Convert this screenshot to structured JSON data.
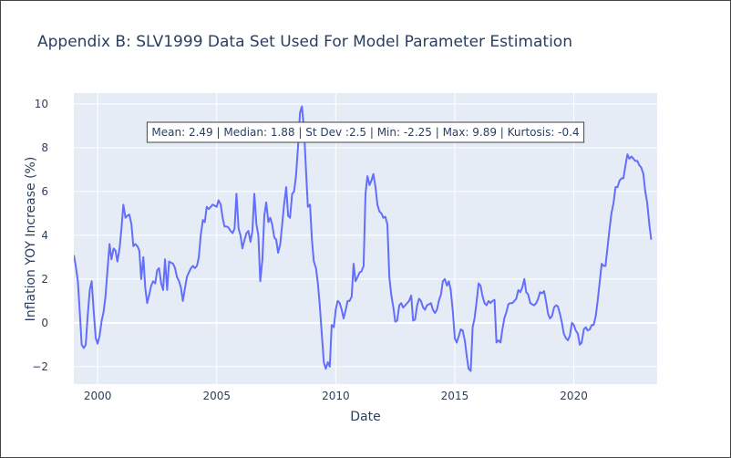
{
  "chart_data": {
    "type": "line",
    "title": "Appendix B: SLV1999 Data Set Used For Model Parameter Estimation",
    "xlabel": "Date",
    "ylabel": "Inflation YOY Increase (%)",
    "xlim": [
      1999.0,
      2023.5
    ],
    "ylim": [
      -2.8,
      10.5
    ],
    "x_ticks": [
      2000,
      2005,
      2010,
      2015,
      2020
    ],
    "y_ticks": [
      -2,
      0,
      2,
      4,
      6,
      8,
      10
    ],
    "grid": true,
    "line_color": "#636efa",
    "plot_bgcolor": "#e5ecf6",
    "annotation": "Mean: 2.49 | Median: 1.88 | St Dev :2.5 | Min: -2.25 | Max: 9.89 | Kurtosis: -0.4",
    "series": [
      {
        "values": [
          [
            1999.0,
            3.1
          ],
          [
            1999.08,
            2.6
          ],
          [
            1999.17,
            1.9
          ],
          [
            1999.25,
            0.5
          ],
          [
            1999.33,
            -1.0
          ],
          [
            1999.42,
            -1.15
          ],
          [
            1999.5,
            -1.0
          ],
          [
            1999.58,
            0.3
          ],
          [
            1999.67,
            1.5
          ],
          [
            1999.75,
            1.9
          ],
          [
            1999.83,
            0.6
          ],
          [
            1999.92,
            -0.7
          ],
          [
            2000.0,
            -0.95
          ],
          [
            2000.08,
            -0.6
          ],
          [
            2000.17,
            0.1
          ],
          [
            2000.25,
            0.5
          ],
          [
            2000.33,
            1.2
          ],
          [
            2000.42,
            2.5
          ],
          [
            2000.5,
            3.6
          ],
          [
            2000.58,
            2.9
          ],
          [
            2000.67,
            3.4
          ],
          [
            2000.75,
            3.3
          ],
          [
            2000.83,
            2.8
          ],
          [
            2000.92,
            3.4
          ],
          [
            2001.0,
            4.3
          ],
          [
            2001.08,
            5.4
          ],
          [
            2001.17,
            4.8
          ],
          [
            2001.25,
            4.9
          ],
          [
            2001.33,
            4.95
          ],
          [
            2001.42,
            4.5
          ],
          [
            2001.5,
            3.5
          ],
          [
            2001.58,
            3.6
          ],
          [
            2001.67,
            3.5
          ],
          [
            2001.75,
            3.3
          ],
          [
            2001.83,
            2.0
          ],
          [
            2001.92,
            3.0
          ],
          [
            2002.0,
            1.6
          ],
          [
            2002.08,
            0.9
          ],
          [
            2002.17,
            1.3
          ],
          [
            2002.25,
            1.7
          ],
          [
            2002.33,
            1.9
          ],
          [
            2002.42,
            1.8
          ],
          [
            2002.5,
            2.4
          ],
          [
            2002.58,
            2.5
          ],
          [
            2002.67,
            1.8
          ],
          [
            2002.75,
            1.5
          ],
          [
            2002.83,
            2.9
          ],
          [
            2002.92,
            1.5
          ],
          [
            2003.0,
            2.8
          ],
          [
            2003.08,
            2.75
          ],
          [
            2003.17,
            2.7
          ],
          [
            2003.25,
            2.5
          ],
          [
            2003.33,
            2.1
          ],
          [
            2003.42,
            1.9
          ],
          [
            2003.5,
            1.6
          ],
          [
            2003.58,
            1.0
          ],
          [
            2003.67,
            1.6
          ],
          [
            2003.75,
            2.1
          ],
          [
            2003.83,
            2.3
          ],
          [
            2003.92,
            2.5
          ],
          [
            2004.0,
            2.6
          ],
          [
            2004.08,
            2.5
          ],
          [
            2004.17,
            2.6
          ],
          [
            2004.25,
            3.0
          ],
          [
            2004.33,
            4.0
          ],
          [
            2004.42,
            4.7
          ],
          [
            2004.5,
            4.6
          ],
          [
            2004.58,
            5.3
          ],
          [
            2004.67,
            5.2
          ],
          [
            2004.75,
            5.3
          ],
          [
            2004.83,
            5.4
          ],
          [
            2004.92,
            5.35
          ],
          [
            2005.0,
            5.3
          ],
          [
            2005.08,
            5.6
          ],
          [
            2005.17,
            5.4
          ],
          [
            2005.25,
            4.8
          ],
          [
            2005.33,
            4.4
          ],
          [
            2005.42,
            4.4
          ],
          [
            2005.5,
            4.35
          ],
          [
            2005.58,
            4.2
          ],
          [
            2005.67,
            4.1
          ],
          [
            2005.75,
            4.3
          ],
          [
            2005.83,
            5.9
          ],
          [
            2005.92,
            4.3
          ],
          [
            2006.0,
            4.0
          ],
          [
            2006.08,
            3.4
          ],
          [
            2006.17,
            3.8
          ],
          [
            2006.25,
            4.1
          ],
          [
            2006.33,
            4.2
          ],
          [
            2006.42,
            3.7
          ],
          [
            2006.5,
            4.2
          ],
          [
            2006.58,
            5.9
          ],
          [
            2006.67,
            4.5
          ],
          [
            2006.75,
            4.0
          ],
          [
            2006.83,
            1.9
          ],
          [
            2006.92,
            2.9
          ],
          [
            2007.0,
            4.9
          ],
          [
            2007.08,
            5.5
          ],
          [
            2007.17,
            4.6
          ],
          [
            2007.25,
            4.8
          ],
          [
            2007.33,
            4.5
          ],
          [
            2007.42,
            3.9
          ],
          [
            2007.5,
            3.8
          ],
          [
            2007.58,
            3.2
          ],
          [
            2007.67,
            3.6
          ],
          [
            2007.75,
            4.5
          ],
          [
            2007.83,
            5.4
          ],
          [
            2007.92,
            6.2
          ],
          [
            2008.0,
            4.9
          ],
          [
            2008.08,
            4.8
          ],
          [
            2008.17,
            5.9
          ],
          [
            2008.25,
            6.0
          ],
          [
            2008.33,
            6.7
          ],
          [
            2008.42,
            8.1
          ],
          [
            2008.5,
            9.6
          ],
          [
            2008.58,
            9.89
          ],
          [
            2008.67,
            8.8
          ],
          [
            2008.75,
            7.0
          ],
          [
            2008.83,
            5.3
          ],
          [
            2008.92,
            5.4
          ],
          [
            2009.0,
            3.8
          ],
          [
            2009.08,
            2.8
          ],
          [
            2009.17,
            2.5
          ],
          [
            2009.25,
            1.8
          ],
          [
            2009.33,
            0.8
          ],
          [
            2009.42,
            -0.6
          ],
          [
            2009.5,
            -1.8
          ],
          [
            2009.58,
            -2.1
          ],
          [
            2009.67,
            -1.8
          ],
          [
            2009.75,
            -2.0
          ],
          [
            2009.83,
            -0.1
          ],
          [
            2009.92,
            -0.2
          ],
          [
            2010.0,
            0.6
          ],
          [
            2010.08,
            1.0
          ],
          [
            2010.17,
            0.9
          ],
          [
            2010.25,
            0.6
          ],
          [
            2010.33,
            0.2
          ],
          [
            2010.42,
            0.6
          ],
          [
            2010.5,
            1.0
          ],
          [
            2010.58,
            1.0
          ],
          [
            2010.67,
            1.2
          ],
          [
            2010.75,
            2.7
          ],
          [
            2010.83,
            1.9
          ],
          [
            2010.92,
            2.1
          ],
          [
            2011.0,
            2.3
          ],
          [
            2011.08,
            2.35
          ],
          [
            2011.17,
            2.6
          ],
          [
            2011.25,
            5.9
          ],
          [
            2011.33,
            6.7
          ],
          [
            2011.42,
            6.3
          ],
          [
            2011.5,
            6.5
          ],
          [
            2011.58,
            6.8
          ],
          [
            2011.67,
            6.2
          ],
          [
            2011.75,
            5.4
          ],
          [
            2011.83,
            5.1
          ],
          [
            2011.92,
            5.0
          ],
          [
            2012.0,
            4.8
          ],
          [
            2012.08,
            4.85
          ],
          [
            2012.17,
            4.5
          ],
          [
            2012.25,
            2.1
          ],
          [
            2012.33,
            1.3
          ],
          [
            2012.42,
            0.7
          ],
          [
            2012.5,
            0.05
          ],
          [
            2012.58,
            0.1
          ],
          [
            2012.67,
            0.8
          ],
          [
            2012.75,
            0.9
          ],
          [
            2012.83,
            0.7
          ],
          [
            2012.92,
            0.8
          ],
          [
            2013.0,
            0.9
          ],
          [
            2013.08,
            1.0
          ],
          [
            2013.17,
            1.25
          ],
          [
            2013.25,
            0.1
          ],
          [
            2013.33,
            0.15
          ],
          [
            2013.42,
            0.8
          ],
          [
            2013.5,
            1.1
          ],
          [
            2013.58,
            1.0
          ],
          [
            2013.67,
            0.7
          ],
          [
            2013.75,
            0.6
          ],
          [
            2013.83,
            0.8
          ],
          [
            2013.92,
            0.85
          ],
          [
            2014.0,
            0.9
          ],
          [
            2014.08,
            0.6
          ],
          [
            2014.17,
            0.45
          ],
          [
            2014.25,
            0.6
          ],
          [
            2014.33,
            1.0
          ],
          [
            2014.42,
            1.3
          ],
          [
            2014.5,
            1.9
          ],
          [
            2014.58,
            2.0
          ],
          [
            2014.67,
            1.7
          ],
          [
            2014.75,
            1.9
          ],
          [
            2014.83,
            1.5
          ],
          [
            2014.92,
            0.5
          ],
          [
            2015.0,
            -0.7
          ],
          [
            2015.08,
            -0.9
          ],
          [
            2015.17,
            -0.6
          ],
          [
            2015.25,
            -0.3
          ],
          [
            2015.33,
            -0.35
          ],
          [
            2015.42,
            -0.8
          ],
          [
            2015.5,
            -1.5
          ],
          [
            2015.58,
            -2.1
          ],
          [
            2015.67,
            -2.2
          ],
          [
            2015.75,
            -0.2
          ],
          [
            2015.83,
            0.2
          ],
          [
            2015.92,
            1.0
          ],
          [
            2016.0,
            1.8
          ],
          [
            2016.08,
            1.7
          ],
          [
            2016.17,
            1.2
          ],
          [
            2016.25,
            0.9
          ],
          [
            2016.33,
            0.8
          ],
          [
            2016.42,
            1.0
          ],
          [
            2016.5,
            0.9
          ],
          [
            2016.58,
            1.0
          ],
          [
            2016.67,
            1.05
          ],
          [
            2016.75,
            -0.9
          ],
          [
            2016.83,
            -0.8
          ],
          [
            2016.92,
            -0.9
          ],
          [
            2017.0,
            -0.3
          ],
          [
            2017.08,
            0.2
          ],
          [
            2017.17,
            0.5
          ],
          [
            2017.25,
            0.85
          ],
          [
            2017.33,
            0.9
          ],
          [
            2017.42,
            0.9
          ],
          [
            2017.5,
            1.0
          ],
          [
            2017.58,
            1.1
          ],
          [
            2017.67,
            1.5
          ],
          [
            2017.75,
            1.4
          ],
          [
            2017.83,
            1.6
          ],
          [
            2017.92,
            2.0
          ],
          [
            2018.0,
            1.4
          ],
          [
            2018.08,
            1.3
          ],
          [
            2018.17,
            0.9
          ],
          [
            2018.25,
            0.85
          ],
          [
            2018.33,
            0.8
          ],
          [
            2018.42,
            0.9
          ],
          [
            2018.5,
            1.1
          ],
          [
            2018.58,
            1.4
          ],
          [
            2018.67,
            1.35
          ],
          [
            2018.75,
            1.45
          ],
          [
            2018.83,
            1.0
          ],
          [
            2018.92,
            0.4
          ],
          [
            2019.0,
            0.2
          ],
          [
            2019.08,
            0.3
          ],
          [
            2019.17,
            0.7
          ],
          [
            2019.25,
            0.8
          ],
          [
            2019.33,
            0.75
          ],
          [
            2019.42,
            0.4
          ],
          [
            2019.5,
            0.0
          ],
          [
            2019.58,
            -0.5
          ],
          [
            2019.67,
            -0.7
          ],
          [
            2019.75,
            -0.8
          ],
          [
            2019.83,
            -0.6
          ],
          [
            2019.92,
            0.0
          ],
          [
            2020.0,
            -0.1
          ],
          [
            2020.08,
            -0.35
          ],
          [
            2020.17,
            -0.5
          ],
          [
            2020.25,
            -1.0
          ],
          [
            2020.33,
            -0.9
          ],
          [
            2020.42,
            -0.3
          ],
          [
            2020.5,
            -0.2
          ],
          [
            2020.58,
            -0.35
          ],
          [
            2020.67,
            -0.3
          ],
          [
            2020.75,
            -0.1
          ],
          [
            2020.83,
            -0.1
          ],
          [
            2020.92,
            0.3
          ],
          [
            2021.0,
            1.0
          ],
          [
            2021.08,
            1.8
          ],
          [
            2021.17,
            2.7
          ],
          [
            2021.25,
            2.6
          ],
          [
            2021.33,
            2.6
          ],
          [
            2021.42,
            3.5
          ],
          [
            2021.5,
            4.3
          ],
          [
            2021.58,
            5.0
          ],
          [
            2021.67,
            5.5
          ],
          [
            2021.75,
            6.2
          ],
          [
            2021.83,
            6.2
          ],
          [
            2021.92,
            6.5
          ],
          [
            2022.0,
            6.6
          ],
          [
            2022.08,
            6.6
          ],
          [
            2022.17,
            7.2
          ],
          [
            2022.25,
            7.7
          ],
          [
            2022.33,
            7.5
          ],
          [
            2022.42,
            7.6
          ],
          [
            2022.5,
            7.5
          ],
          [
            2022.58,
            7.4
          ],
          [
            2022.67,
            7.4
          ],
          [
            2022.75,
            7.2
          ],
          [
            2022.83,
            7.1
          ],
          [
            2022.92,
            6.8
          ],
          [
            2023.0,
            6.0
          ],
          [
            2023.08,
            5.5
          ],
          [
            2023.17,
            4.5
          ],
          [
            2023.25,
            3.8
          ]
        ]
      }
    ]
  }
}
